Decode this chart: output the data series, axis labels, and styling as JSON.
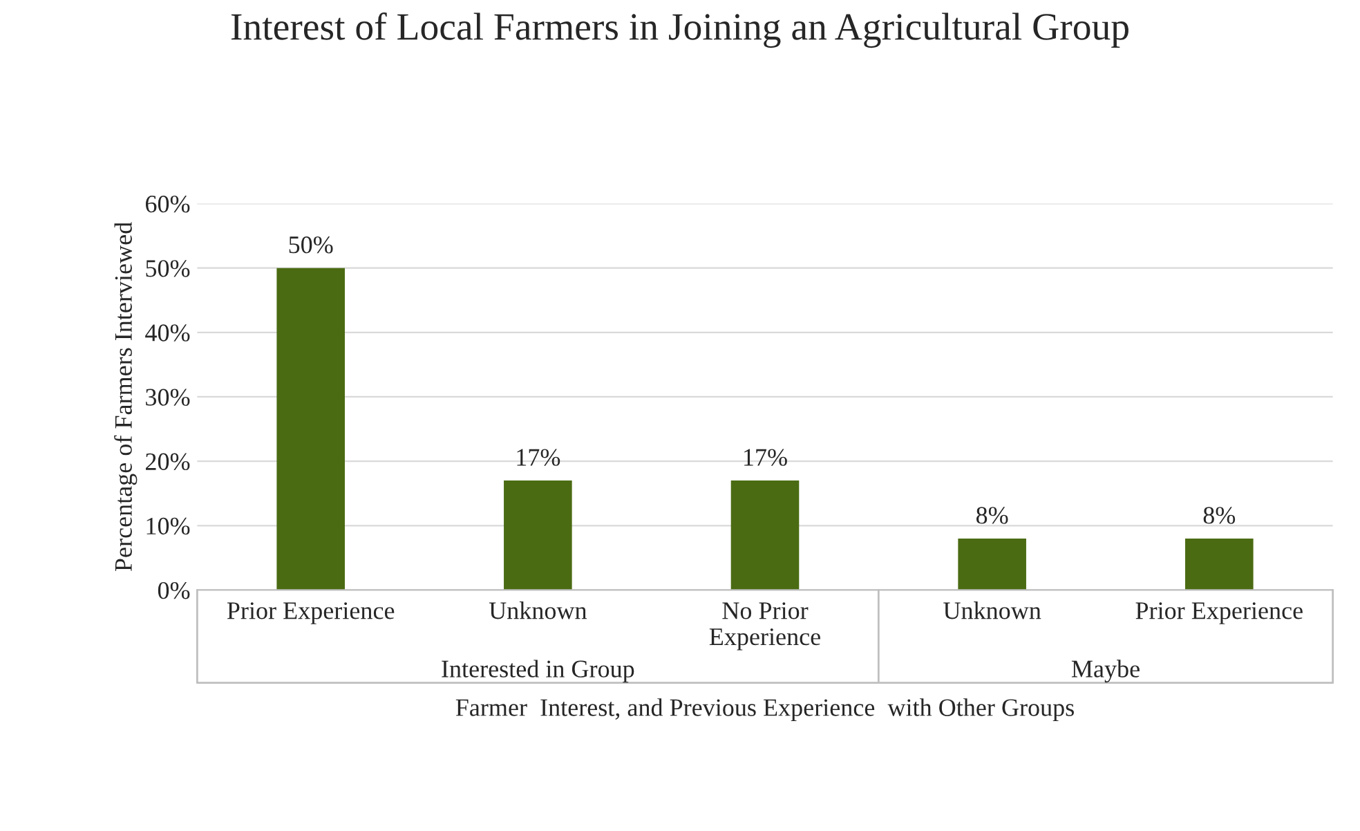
{
  "chart_data": {
    "type": "bar",
    "title": "Interest of Local Farmers in Joining an Agricultural Group",
    "xlabel": "Farmer  Interest, and Previous Experience  with Other Groups",
    "ylabel": "Percentage of Farmers Interviewed",
    "categories": [
      "Prior Experience",
      "Unknown",
      "No Prior\nExperience",
      "Unknown",
      "Prior Experience"
    ],
    "values": [
      50,
      17,
      17,
      8,
      8
    ],
    "color": "#4a6b12",
    "ylim": [
      0,
      60
    ],
    "yticks": [
      {
        "value": 0,
        "label": "0%"
      },
      {
        "value": 10,
        "label": "10%"
      },
      {
        "value": 20,
        "label": "20%"
      },
      {
        "value": 30,
        "label": "30%"
      },
      {
        "value": 40,
        "label": "40%"
      },
      {
        "value": 50,
        "label": "50%"
      },
      {
        "value": 60,
        "label": "60%"
      }
    ],
    "value_labels": [
      "50%",
      "17%",
      "17%",
      "8%",
      "8%"
    ],
    "annotations": [
      "Interested in Group",
      "Maybe"
    ],
    "grid": "y",
    "legend": false
  }
}
